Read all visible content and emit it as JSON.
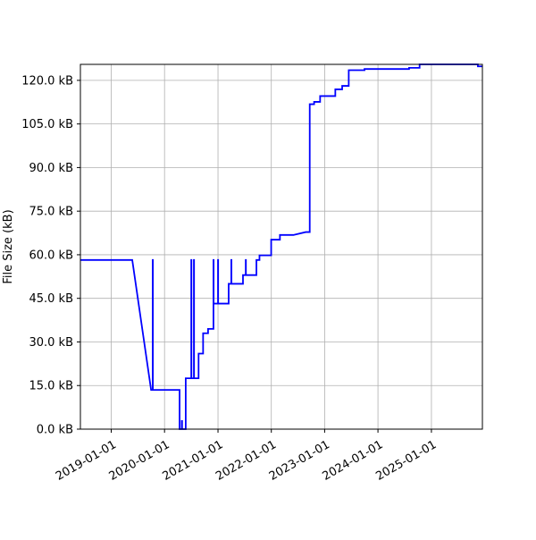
{
  "chart_data": {
    "type": "line",
    "title": "",
    "xlabel": "",
    "ylabel": "File Size (kB)",
    "grid": true,
    "legend": "none",
    "line_color": "#0000ff",
    "x_axis_type": "date",
    "xlim": [
      "2018-06-04",
      "2025-12-16"
    ],
    "ylim": [
      0,
      125.5
    ],
    "x_ticks": [
      "2019-01-01",
      "2020-01-01",
      "2021-01-01",
      "2022-01-01",
      "2023-01-01",
      "2024-01-01",
      "2025-01-01"
    ],
    "y_ticks": [
      0,
      15,
      30,
      45,
      60,
      75,
      90,
      105,
      120
    ],
    "y_tick_labels": [
      "0.0 kB",
      "15.0 kB",
      "30.0 kB",
      "45.0 kB",
      "60.0 kB",
      "75.0 kB",
      "90.0 kB",
      "105.0 kB",
      "120.0 kB"
    ],
    "series": [
      {
        "x": [
          "2018-06-04",
          "2019-05-25",
          "2019-10-01",
          "2019-10-12",
          "2019-10-12",
          "2019-10-13",
          "2019-10-13",
          "2020-04-13",
          "2020-04-13",
          "2020-04-28",
          "2020-04-28",
          "2020-04-30",
          "2020-04-30",
          "2020-05-25",
          "2020-05-25",
          "2020-07-02",
          "2020-07-02",
          "2020-07-03",
          "2020-07-03",
          "2020-07-20",
          "2020-07-20",
          "2020-07-21",
          "2020-07-21",
          "2020-08-21",
          "2020-08-21",
          "2020-09-21",
          "2020-09-21",
          "2020-10-25",
          "2020-10-25",
          "2020-12-01",
          "2020-12-01",
          "2020-12-02",
          "2020-12-02",
          "2021-01-01",
          "2021-01-01",
          "2021-01-02",
          "2021-01-02",
          "2021-03-15",
          "2021-03-15",
          "2021-04-02",
          "2021-04-02",
          "2021-04-03",
          "2021-04-03",
          "2021-06-21",
          "2021-06-21",
          "2021-07-10",
          "2021-07-10",
          "2021-07-11",
          "2021-07-11",
          "2021-09-21",
          "2021-09-21",
          "2021-09-22",
          "2021-09-22",
          "2021-10-12",
          "2021-10-12",
          "2021-11-05",
          "2021-11-05",
          "2021-12-31",
          "2021-12-31",
          "2022-03-01",
          "2022-03-01",
          "2022-06-01",
          "2022-08-25",
          "2022-09-21",
          "2022-09-21",
          "2022-10-21",
          "2022-10-21",
          "2022-12-01",
          "2022-12-01",
          "2023-03-15",
          "2023-03-15",
          "2023-05-01",
          "2023-05-01",
          "2023-06-15",
          "2023-06-15",
          "2023-10-01",
          "2023-10-01",
          "2024-08-01",
          "2024-08-01",
          "2024-10-12",
          "2024-10-12",
          "2025-11-15",
          "2025-11-15",
          "2025-12-16"
        ],
        "y": [
          58.2,
          58.2,
          13.5,
          13.5,
          58.2,
          58.2,
          13.5,
          13.5,
          0,
          0,
          2.8,
          2.8,
          0,
          0,
          17.5,
          17.5,
          58.2,
          58.2,
          17.5,
          17.5,
          58.2,
          58.2,
          17.5,
          17.5,
          26,
          26,
          33,
          33,
          34.5,
          34.5,
          58.2,
          58.2,
          43.2,
          43.2,
          58.2,
          58.2,
          43.2,
          43.2,
          50,
          50,
          58.2,
          58.2,
          50,
          50,
          53,
          53,
          58.2,
          58.2,
          53,
          53,
          58.2,
          58.2,
          58.2,
          58.2,
          59.8,
          59.8,
          59.8,
          59.8,
          65.2,
          65.2,
          66.8,
          66.8,
          67.8,
          67.8,
          111.8,
          111.8,
          112.6,
          112.6,
          114.6,
          114.6,
          116.9,
          116.9,
          118.1,
          118.1,
          123.5,
          123.5,
          123.9,
          123.9,
          124.3,
          124.3,
          125.5,
          125.5,
          124.8,
          124.8
        ]
      }
    ]
  }
}
